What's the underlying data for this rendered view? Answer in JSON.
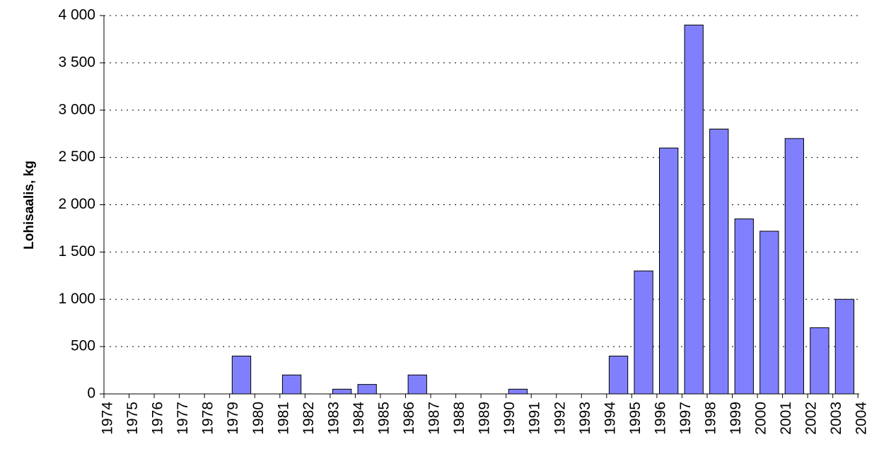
{
  "chart_data": {
    "type": "bar",
    "y_label": "Lohisaalis, kg",
    "categories": [
      "1974",
      "1975",
      "1976",
      "1977",
      "1978",
      "1979",
      "1980",
      "1981",
      "1982",
      "1983",
      "1984",
      "1985",
      "1986",
      "1987",
      "1988",
      "1989",
      "1990",
      "1991",
      "1992",
      "1993",
      "1994",
      "1995",
      "1996",
      "1997",
      "1998",
      "1999",
      "2000",
      "2001",
      "2002",
      "2003",
      "2004"
    ],
    "values": [
      0,
      0,
      0,
      0,
      0,
      400,
      0,
      200,
      0,
      50,
      100,
      0,
      200,
      0,
      0,
      0,
      50,
      0,
      0,
      0,
      400,
      1300,
      2600,
      3900,
      2800,
      1850,
      1720,
      2700,
      700,
      1000,
      0
    ],
    "color": "#8080ff",
    "ylim": [
      0,
      4000
    ],
    "yticks": [
      0,
      500,
      {
        "value": 1000,
        "label": "1 000"
      },
      {
        "value": 1500,
        "label": "1 500"
      },
      {
        "value": 2000,
        "label": "2 000"
      },
      {
        "value": 2500,
        "label": "2 500"
      },
      {
        "value": 3000,
        "label": "3 000"
      },
      {
        "value": 3500,
        "label": "3 500"
      },
      {
        "value": 4000,
        "label": "4 000"
      }
    ],
    "grid": true
  }
}
